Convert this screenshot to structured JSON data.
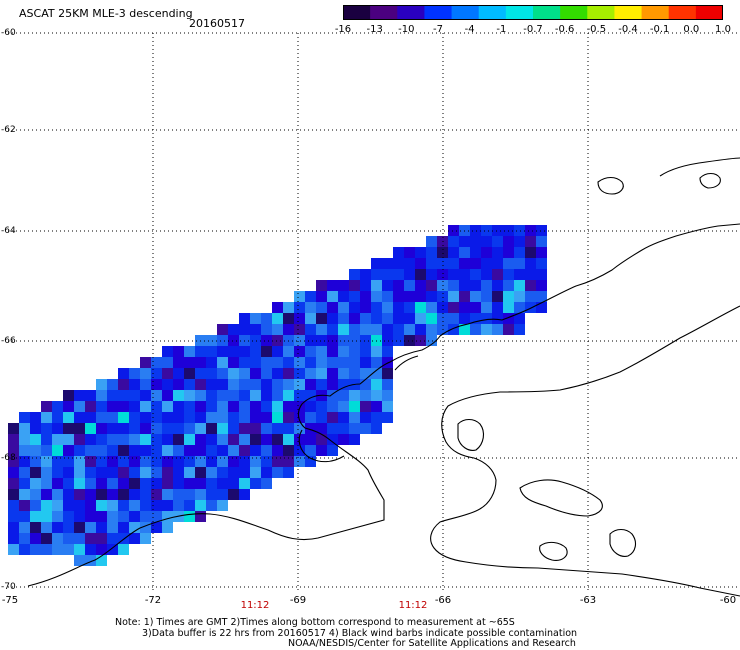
{
  "title": {
    "main": "ASCAT 25KM MLE-3 descending",
    "date": "20160517"
  },
  "colorbar": {
    "labels": [
      "-16",
      "-13",
      "-10",
      "-7",
      "-4",
      "-1",
      "-0.7",
      "-0.6",
      "-0.5",
      "-0.4",
      "-0.1",
      "0.0",
      "1.0"
    ],
    "colors": [
      "#1a0040",
      "#4b0080",
      "#2a00c0",
      "#0033ff",
      "#0077ff",
      "#00bbff",
      "#00e6e6",
      "#00e08a",
      "#33dd00",
      "#a6ee00",
      "#ffee00",
      "#ff9900",
      "#ff3300",
      "#ee0000"
    ]
  },
  "axes": {
    "lat_labels": [
      "-60",
      "-62",
      "-64",
      "-66",
      "-68",
      "-70"
    ],
    "lon_labels": [
      "-75",
      "-72",
      "-69",
      "-66",
      "-63",
      "-60"
    ],
    "time_labels": [
      "11:12",
      "11:12"
    ]
  },
  "notes": {
    "line1": "Note: 1) Times are GMT 2)Times along bottom correspond to measurement at ~65S",
    "line2": "3)Data buffer is 22 hrs from 20160517 4) Black wind barbs indicate possible contamination",
    "line3": "NOAA/NESDIS/Center for Satellite Applications and Research"
  },
  "swath": {
    "palette": [
      "#1c0a6e",
      "#3a0aa0",
      "#1e00d8",
      "#0a1ae8",
      "#0a38ee",
      "#1a5cf0",
      "#2a7ef2",
      "#3aa2f4",
      "#22c8f0",
      "#00dcd8",
      "#20e050"
    ]
  }
}
